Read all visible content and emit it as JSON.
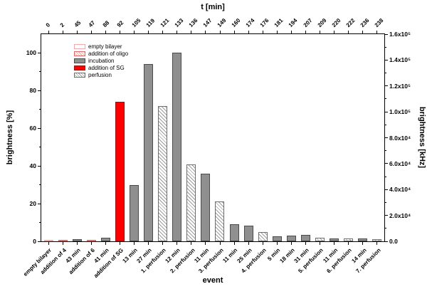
{
  "chart_data": {
    "type": "bar",
    "title": "",
    "top_axis_label": "t [min]",
    "xlabel": "event",
    "ylabel_left": "brightness [%]",
    "ylabel_right": "brightness [kHz]",
    "ylim_left": [
      0,
      110
    ],
    "left_ticks": [
      0,
      20,
      40,
      60,
      80,
      100
    ],
    "left_minor_ticks": [
      10,
      30,
      50,
      70,
      90
    ],
    "right_axis_range": [
      0,
      160000
    ],
    "right_tick_labels": [
      "0.0",
      "2.0x10⁴",
      "4.0x10⁴",
      "6.0x10⁴",
      "8.0x10⁴",
      "1.0x10⁵",
      "1.2x10⁵",
      "1.4x10⁵",
      "1.6x10⁵"
    ],
    "grid": false,
    "legend_position": "inside top-left",
    "t_values": [
      "0",
      "2",
      "45",
      "47",
      "88",
      "92",
      "105",
      "119",
      "121",
      "133",
      "136",
      "147",
      "149",
      "160",
      "174",
      "176",
      "181",
      "194",
      "207",
      "209",
      "220",
      "222",
      "236",
      "238"
    ],
    "categories": [
      "empty bilayer",
      "addition of 4",
      "43 min",
      "addition of 6",
      "41 min",
      "addition of SG",
      "13 min",
      "27 min",
      "1. perfusion",
      "12 min",
      "2. perfusion",
      "11 min",
      "3. perfusion",
      "11 min",
      "25 min",
      "4. perfusion",
      "5 min",
      "18 min",
      "31 min",
      "5. perfusion",
      "11 min",
      "6. perfusion",
      "14 min",
      "7. perfusion"
    ],
    "values": [
      0.8,
      0.8,
      1.2,
      0.8,
      1.8,
      74,
      30,
      94,
      72,
      100,
      41,
      36,
      21,
      9,
      8.5,
      5,
      2.5,
      3,
      3.5,
      2,
      1.5,
      1.5,
      1.5,
      1
    ],
    "bar_types": [
      "empty",
      "oligo",
      "incubation",
      "oligo",
      "incubation",
      "sg",
      "incubation",
      "incubation",
      "perfusion",
      "incubation",
      "perfusion",
      "incubation",
      "perfusion",
      "incubation",
      "incubation",
      "perfusion",
      "incubation",
      "incubation",
      "incubation",
      "perfusion",
      "incubation",
      "perfusion",
      "incubation",
      "perfusion"
    ],
    "legend": [
      {
        "label": "empty bilayer",
        "type": "empty"
      },
      {
        "label": "addition of oligo",
        "type": "oligo"
      },
      {
        "label": "incubation",
        "type": "incubation"
      },
      {
        "label": "addition of SG",
        "type": "sg"
      },
      {
        "label": "perfusion",
        "type": "perfusion"
      }
    ],
    "colors": {
      "incubation": "#8f8f8f",
      "addition_of_sg": "#fe0000",
      "oligo_hatch": "#f19b9b",
      "perfusion_hatch": "#9c9c9c"
    }
  }
}
